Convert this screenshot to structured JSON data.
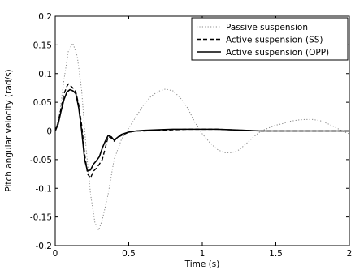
{
  "chart_data": {
    "type": "line",
    "xlabel": "Time (s)",
    "ylabel": "Pitch angular velocity (rad/s)",
    "xlim": [
      0,
      2
    ],
    "ylim": [
      -0.2,
      0.2
    ],
    "x_ticks": [
      0,
      0.5,
      1,
      1.5,
      2
    ],
    "x_tick_labels": [
      "0",
      "0.5",
      "1",
      "1.5",
      "2"
    ],
    "y_ticks": [
      -0.2,
      -0.15,
      -0.1,
      -0.05,
      0,
      0.05,
      0.1,
      0.15,
      0.2
    ],
    "y_tick_labels": [
      "-0.2",
      "-0.15",
      "-0.1",
      "-0.05",
      "0",
      "0.05",
      "0.1",
      "0.15",
      "0.2"
    ],
    "grid": false,
    "legend_position": "top-right",
    "series": [
      {
        "name": "Passive suspension",
        "style": "dotted",
        "color": "#888888",
        "points": [
          [
            0,
            0
          ],
          [
            0.03,
            0.03
          ],
          [
            0.06,
            0.09
          ],
          [
            0.09,
            0.14
          ],
          [
            0.12,
            0.153
          ],
          [
            0.15,
            0.13
          ],
          [
            0.18,
            0.07
          ],
          [
            0.21,
            -0.03
          ],
          [
            0.24,
            -0.11
          ],
          [
            0.27,
            -0.16
          ],
          [
            0.295,
            -0.173
          ],
          [
            0.32,
            -0.155
          ],
          [
            0.36,
            -0.11
          ],
          [
            0.4,
            -0.05
          ],
          [
            0.45,
            -0.015
          ],
          [
            0.5,
            0.005
          ],
          [
            0.55,
            0.025
          ],
          [
            0.6,
            0.045
          ],
          [
            0.65,
            0.06
          ],
          [
            0.7,
            0.069
          ],
          [
            0.75,
            0.073
          ],
          [
            0.8,
            0.07
          ],
          [
            0.85,
            0.058
          ],
          [
            0.9,
            0.04
          ],
          [
            0.95,
            0.015
          ],
          [
            1.0,
            -0.005
          ],
          [
            1.05,
            -0.02
          ],
          [
            1.1,
            -0.032
          ],
          [
            1.15,
            -0.038
          ],
          [
            1.2,
            -0.038
          ],
          [
            1.25,
            -0.033
          ],
          [
            1.3,
            -0.022
          ],
          [
            1.35,
            -0.01
          ],
          [
            1.4,
            0.0
          ],
          [
            1.45,
            0.005
          ],
          [
            1.5,
            0.01
          ],
          [
            1.55,
            0.013
          ],
          [
            1.6,
            0.017
          ],
          [
            1.65,
            0.019
          ],
          [
            1.7,
            0.02
          ],
          [
            1.75,
            0.02
          ],
          [
            1.8,
            0.018
          ],
          [
            1.85,
            0.013
          ],
          [
            1.9,
            0.007
          ],
          [
            1.95,
            0.0
          ],
          [
            2.0,
            -0.005
          ]
        ]
      },
      {
        "name": "Active suspension (SS)",
        "style": "dashed",
        "color": "#000000",
        "points": [
          [
            0,
            0
          ],
          [
            0.02,
            0.015
          ],
          [
            0.04,
            0.04
          ],
          [
            0.06,
            0.065
          ],
          [
            0.08,
            0.078
          ],
          [
            0.09,
            0.082
          ],
          [
            0.1,
            0.08
          ],
          [
            0.12,
            0.075
          ],
          [
            0.14,
            0.068
          ],
          [
            0.16,
            0.045
          ],
          [
            0.18,
            0.01
          ],
          [
            0.2,
            -0.04
          ],
          [
            0.22,
            -0.075
          ],
          [
            0.24,
            -0.082
          ],
          [
            0.26,
            -0.07
          ],
          [
            0.28,
            -0.065
          ],
          [
            0.3,
            -0.058
          ],
          [
            0.32,
            -0.05
          ],
          [
            0.34,
            -0.03
          ],
          [
            0.36,
            -0.01
          ],
          [
            0.38,
            -0.012
          ],
          [
            0.4,
            -0.018
          ],
          [
            0.42,
            -0.012
          ],
          [
            0.45,
            -0.008
          ],
          [
            0.5,
            -0.002
          ],
          [
            0.55,
            0.0
          ],
          [
            0.6,
            0.0
          ],
          [
            0.7,
            0.001
          ],
          [
            0.8,
            0.002
          ],
          [
            0.9,
            0.003
          ],
          [
            1.0,
            0.003
          ],
          [
            1.1,
            0.003
          ],
          [
            1.2,
            0.002
          ],
          [
            1.3,
            0.001
          ],
          [
            1.4,
            0.0
          ],
          [
            1.5,
            0.0
          ],
          [
            1.6,
            0.0
          ],
          [
            1.7,
            0.0
          ],
          [
            1.8,
            0.0
          ],
          [
            1.9,
            0.0
          ],
          [
            2.0,
            0.0
          ]
        ]
      },
      {
        "name": "Active suspension (OPP)",
        "style": "solid",
        "color": "#000000",
        "points": [
          [
            0,
            0
          ],
          [
            0.02,
            0.012
          ],
          [
            0.04,
            0.035
          ],
          [
            0.06,
            0.055
          ],
          [
            0.08,
            0.068
          ],
          [
            0.1,
            0.072
          ],
          [
            0.12,
            0.07
          ],
          [
            0.14,
            0.065
          ],
          [
            0.16,
            0.04
          ],
          [
            0.18,
            0.0
          ],
          [
            0.2,
            -0.05
          ],
          [
            0.22,
            -0.07
          ],
          [
            0.24,
            -0.068
          ],
          [
            0.26,
            -0.058
          ],
          [
            0.28,
            -0.052
          ],
          [
            0.3,
            -0.045
          ],
          [
            0.32,
            -0.03
          ],
          [
            0.34,
            -0.018
          ],
          [
            0.36,
            -0.008
          ],
          [
            0.38,
            -0.01
          ],
          [
            0.4,
            -0.016
          ],
          [
            0.42,
            -0.012
          ],
          [
            0.45,
            -0.006
          ],
          [
            0.5,
            -0.002
          ],
          [
            0.55,
            0.0
          ],
          [
            0.6,
            0.001
          ],
          [
            0.7,
            0.002
          ],
          [
            0.8,
            0.003
          ],
          [
            0.9,
            0.003
          ],
          [
            1.0,
            0.003
          ],
          [
            1.1,
            0.003
          ],
          [
            1.2,
            0.002
          ],
          [
            1.3,
            0.001
          ],
          [
            1.4,
            0.0
          ],
          [
            1.5,
            0.0
          ],
          [
            1.6,
            0.0
          ],
          [
            1.7,
            0.0
          ],
          [
            1.8,
            0.0
          ],
          [
            1.9,
            0.0
          ],
          [
            2.0,
            0.0
          ]
        ]
      }
    ]
  }
}
